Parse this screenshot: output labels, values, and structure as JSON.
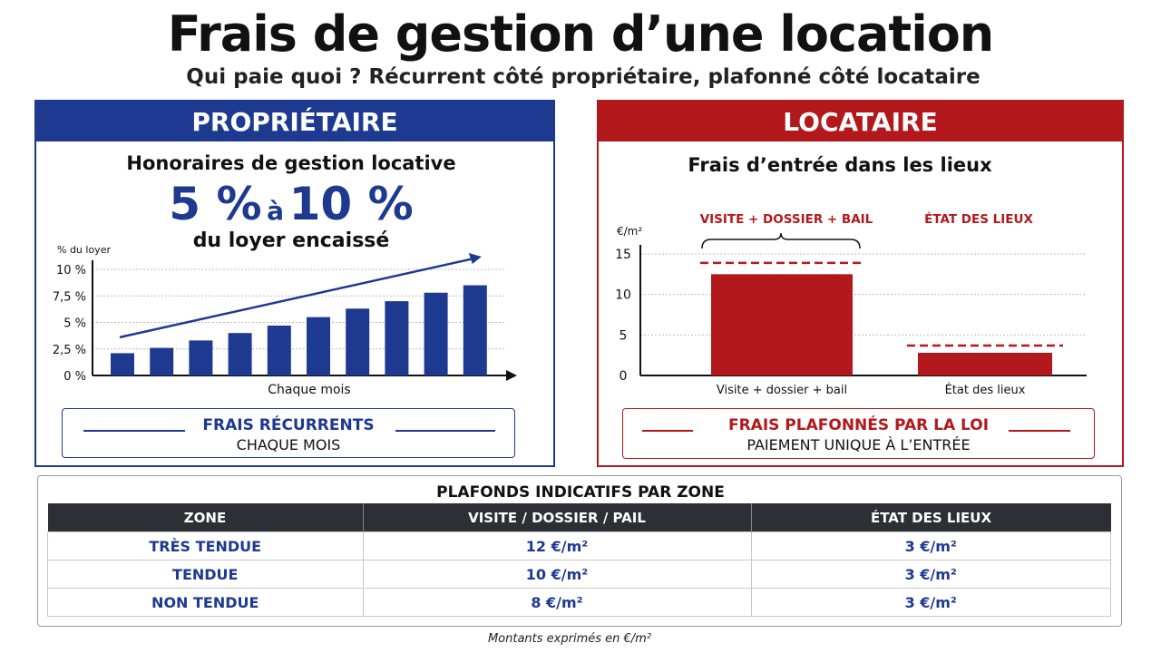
{
  "header": {
    "title": "Frais de gestion d’une location",
    "subtitle": "Qui paie quoi ? Récurrent côté propriétaire, plafonné côté locataire"
  },
  "left_panel": {
    "heading": "PROPRIÉTAIRE",
    "subheading": "Honoraires de gestion locative",
    "big_from": "5 %",
    "big_to_word": "à",
    "big_to": "10 %",
    "caption": "du loyer encaissé",
    "note_title": "FRAIS RÉCURRENTS",
    "note_text": "CHAQUE MOIS"
  },
  "right_panel": {
    "heading": "LOCATAIRE",
    "subheading": "Frais d’entrée dans les lieux",
    "bracket_label": "VISITE + DOSSIER + BAIL",
    "right_label": "ÉTAT DES LIEUX",
    "note_title": "FRAIS PLAFONNÉS PAR LA LOI",
    "note_text": "PAIEMENT UNIQUE À L’ENTRÉE"
  },
  "colors": {
    "blue": "#1d3990",
    "red": "#b3191c",
    "dark": "#2c2f33"
  },
  "chart_data": [
    {
      "type": "bar",
      "ylabel": "% du loyer",
      "xlabel": "Chaque mois",
      "yticks": [
        "0 %",
        "2,5 %",
        "5 %",
        "7,5 %",
        "10 %"
      ],
      "ylim": [
        0,
        10
      ],
      "values": [
        2.1,
        2.6,
        3.3,
        4.0,
        4.7,
        5.5,
        6.3,
        7.0,
        7.8,
        8.5
      ],
      "trend_arrow": true,
      "grid": "dotted"
    },
    {
      "type": "bar",
      "ylabel": "€/m²",
      "categories": [
        "Visite + dossier + bail",
        "État des lieux"
      ],
      "values": [
        12.5,
        2.8
      ],
      "caps": [
        13.9,
        3.7
      ],
      "yticks": [
        "0",
        "5",
        "10",
        "15"
      ],
      "ylim": [
        0,
        15
      ],
      "grid": "dotted"
    }
  ],
  "table": {
    "title": "PLAFONDS INDICATIFS PAR ZONE",
    "headers": [
      "ZONE",
      "VISITE / DOSSIER / PAIL",
      "ÉTAT DES LIEUX"
    ],
    "rows": [
      [
        "TRÈS TENDUE",
        "12 €/m²",
        "3 €/m²"
      ],
      [
        "TENDUE",
        "10 €/m²",
        "3 €/m²"
      ],
      [
        "NON TENDUE",
        "8 €/m²",
        "3 €/m²"
      ]
    ]
  },
  "footnote": "Montants exprimés en €/m²"
}
